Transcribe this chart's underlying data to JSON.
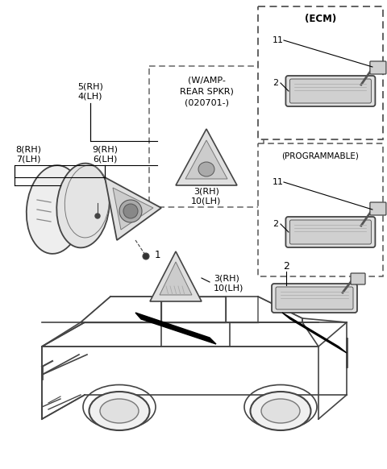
{
  "background_color": "#ffffff",
  "fig_width": 4.8,
  "fig_height": 5.82,
  "dpi": 100,
  "labels": {
    "lbl_54": "5(RH)\n4(LH)",
    "lbl_96": "9(RH)\n6(LH)",
    "lbl_87": "8(RH)\n7(LH)",
    "lbl_wamp": "(W/AMP-\nREAR SPKR)\n(020701-)",
    "lbl_3rh_10lh_wamp": "3(RH)\n10(LH)",
    "lbl_3rh_10lh": "3(RH)\n10(LH)",
    "lbl_1": "1",
    "lbl_2": "2",
    "lbl_ecm": "(ECM)",
    "lbl_11": "11",
    "lbl_prog": "(PROGRAMMABLE)"
  },
  "colors": {
    "line": "#444444",
    "fill_light": "#e8e8e8",
    "fill_mid": "#cccccc",
    "fill_dark": "#aaaaaa",
    "black": "#000000",
    "white": "#ffffff",
    "dashed_box": "#666666"
  }
}
